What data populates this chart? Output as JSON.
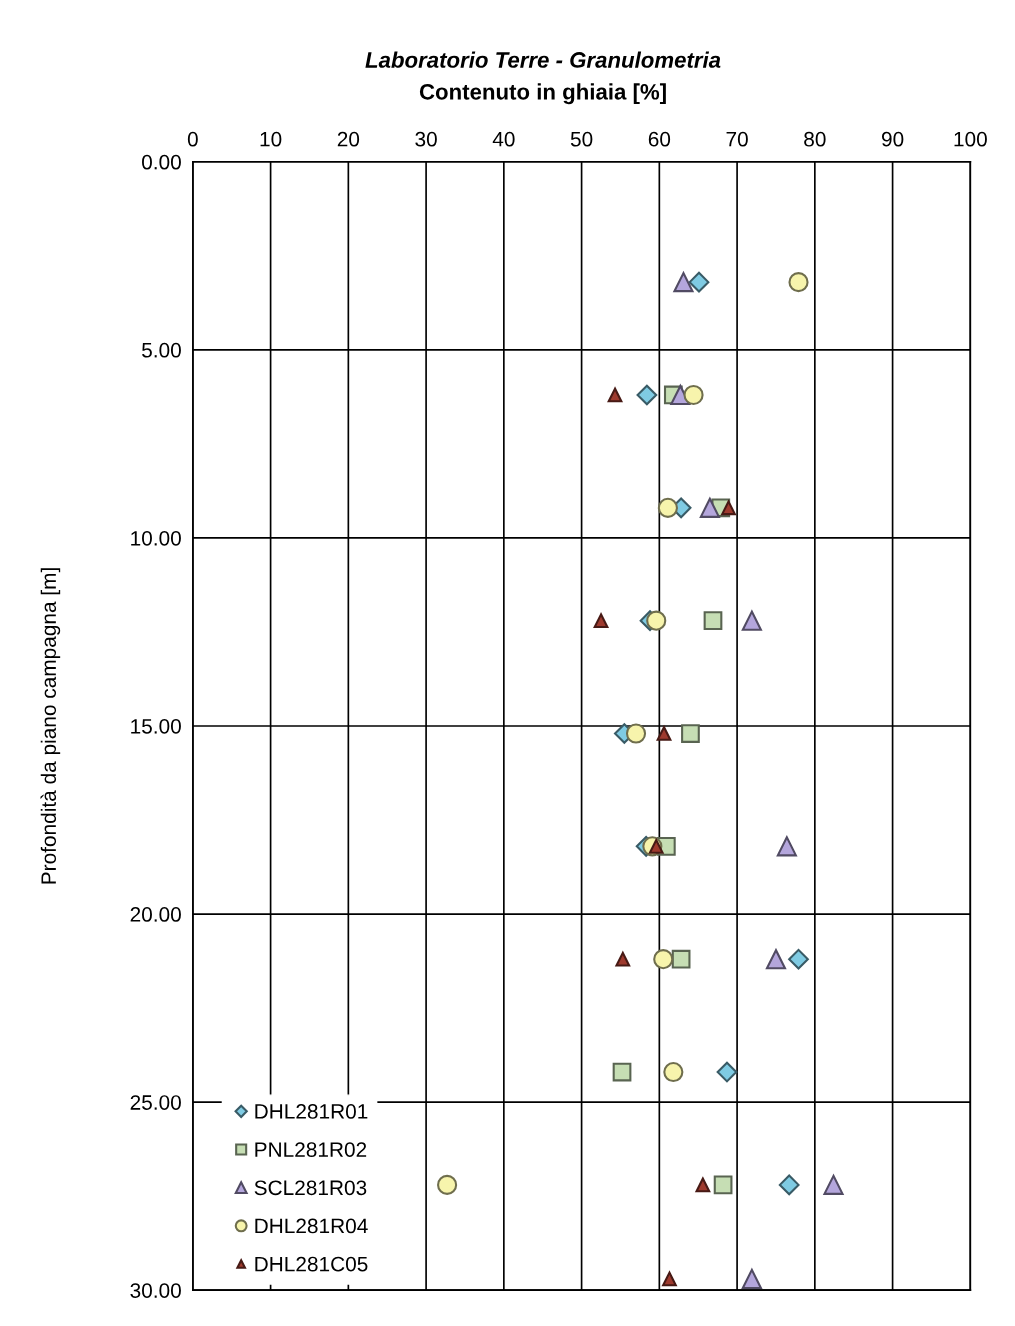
{
  "chart_data": {
    "type": "scatter",
    "title": "Laboratorio Terre - Granulometria",
    "xlabel": "Contenuto in ghiaia [%]",
    "ylabel": "Profondità da piano campagna [m]",
    "xlim": [
      0,
      100
    ],
    "xticks": [
      0,
      10,
      20,
      30,
      40,
      50,
      60,
      70,
      80,
      90,
      100
    ],
    "ylim": [
      30,
      0
    ],
    "yticks": [
      {
        "value": 0,
        "label": "0.00"
      },
      {
        "value": 5,
        "label": "5.00"
      },
      {
        "value": 10,
        "label": "10.00"
      },
      {
        "value": 15,
        "label": "15.00"
      },
      {
        "value": 20,
        "label": "20.00"
      },
      {
        "value": 25,
        "label": "25.00"
      },
      {
        "value": 30,
        "label": "30.00"
      }
    ],
    "grid": true,
    "legend": "bottom left",
    "series": [
      {
        "name": "DHL281R01",
        "color": "#7fcbe3",
        "marker": "diamond",
        "x": [
          65.1,
          58.4,
          62.8,
          58.8,
          55.5,
          58.3,
          77.9,
          68.7,
          76.7
        ],
        "values": [
          3.2,
          6.2,
          9.2,
          12.2,
          15.2,
          18.2,
          21.2,
          24.2,
          27.2
        ]
      },
      {
        "name": "PNL281R02",
        "color": "#c6deb4",
        "marker": "square",
        "x": [
          61.8,
          67.9,
          66.9,
          64.0,
          60.9,
          62.8,
          55.2,
          68.2
        ],
        "values": [
          6.2,
          9.2,
          12.2,
          15.2,
          18.2,
          21.2,
          24.2,
          27.2
        ]
      },
      {
        "name": "SCL281R03",
        "color": "#b4a6dc",
        "marker": "triangle",
        "x": [
          63.1,
          62.7,
          66.5,
          71.9,
          76.4,
          75.0,
          82.4,
          71.9
        ],
        "values": [
          3.2,
          6.2,
          9.2,
          12.2,
          18.2,
          21.2,
          27.2,
          29.7
        ]
      },
      {
        "name": "DHL281R04",
        "color": "#f7f4ac",
        "marker": "circle",
        "x": [
          77.9,
          64.4,
          61.1,
          59.6,
          57.0,
          59.1,
          60.5,
          61.8,
          32.7
        ],
        "values": [
          3.2,
          6.2,
          9.2,
          12.2,
          15.2,
          18.2,
          21.2,
          24.2,
          27.2
        ]
      },
      {
        "name": "DHL281C05",
        "color": "#9e3a2e",
        "marker": "triangle",
        "x": [
          54.3,
          68.9,
          52.5,
          60.6,
          59.6,
          55.3,
          65.6,
          61.3
        ],
        "values": [
          6.2,
          9.2,
          12.2,
          15.2,
          18.2,
          21.2,
          27.2,
          29.7
        ]
      }
    ]
  }
}
